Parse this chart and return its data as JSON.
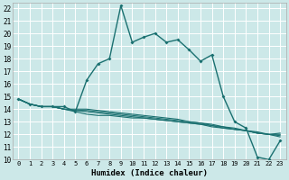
{
  "xlabel": "Humidex (Indice chaleur)",
  "bg_color": "#cce8e8",
  "grid_color": "#ffffff",
  "line_color": "#1a7070",
  "xlim": [
    -0.5,
    23.5
  ],
  "ylim": [
    10,
    22.4
  ],
  "series": [
    [
      14.8,
      14.4,
      14.2,
      14.2,
      14.2,
      13.8,
      16.3,
      17.6,
      18.0,
      22.2,
      19.3,
      19.7,
      20.0,
      19.3,
      19.5,
      18.7,
      17.8,
      18.3,
      15.0,
      13.0,
      12.5,
      10.2,
      10.0,
      11.5
    ],
    [
      14.8,
      14.4,
      14.2,
      14.2,
      14.0,
      13.8,
      13.6,
      13.5,
      13.5,
      13.4,
      13.3,
      13.3,
      13.2,
      13.1,
      13.0,
      12.9,
      12.8,
      12.6,
      12.5,
      12.4,
      12.3,
      12.1,
      12.0,
      11.8
    ],
    [
      14.8,
      14.4,
      14.2,
      14.2,
      14.0,
      13.9,
      13.8,
      13.7,
      13.6,
      13.5,
      13.4,
      13.3,
      13.2,
      13.1,
      13.0,
      12.9,
      12.8,
      12.7,
      12.5,
      12.4,
      12.3,
      12.1,
      12.0,
      11.9
    ],
    [
      14.8,
      14.4,
      14.2,
      14.2,
      14.0,
      13.9,
      13.9,
      13.8,
      13.7,
      13.6,
      13.5,
      13.4,
      13.3,
      13.2,
      13.1,
      13.0,
      12.9,
      12.7,
      12.6,
      12.4,
      12.3,
      12.1,
      12.0,
      12.0
    ],
    [
      14.8,
      14.4,
      14.2,
      14.2,
      14.0,
      14.0,
      14.0,
      13.9,
      13.8,
      13.7,
      13.6,
      13.5,
      13.4,
      13.3,
      13.2,
      13.0,
      12.9,
      12.8,
      12.6,
      12.5,
      12.3,
      12.2,
      12.0,
      12.1
    ]
  ],
  "xtick_fontsize": 5.0,
  "ytick_fontsize": 5.5,
  "xlabel_fontsize": 6.5
}
